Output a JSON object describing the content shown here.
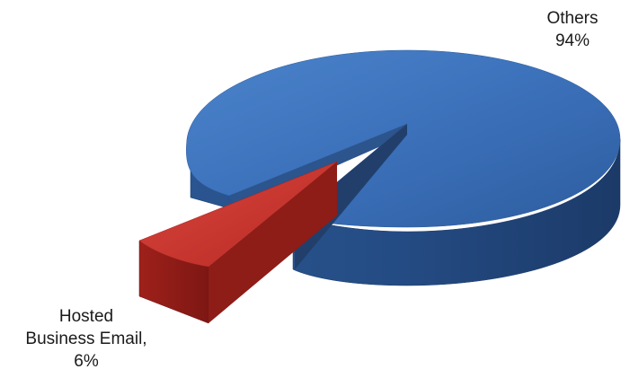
{
  "chart_data": {
    "type": "pie",
    "style": "3d-exploded",
    "slices": [
      {
        "name": "Others",
        "value": 94,
        "value_label": "94%",
        "color": "#3a6fb8"
      },
      {
        "name": "Hosted Business Email,",
        "value": 6,
        "value_label": "6%",
        "color": "#c0312b"
      }
    ],
    "title": "",
    "legend": "none",
    "data_labels": true
  }
}
